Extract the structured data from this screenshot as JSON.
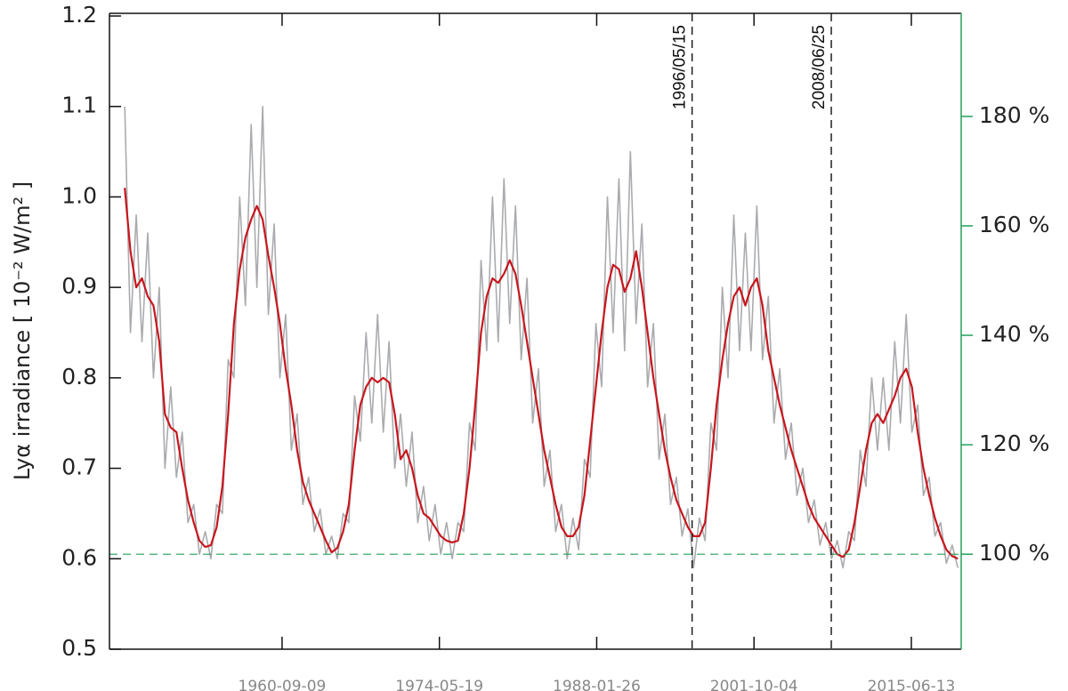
{
  "chart_data": {
    "type": "line",
    "y_label": "Lyα irradiance [ 10⁻² W/m² ]",
    "x": [
      "1947-01-01",
      "1947-07-01",
      "1948-01-01",
      "1948-07-01",
      "1949-01-01",
      "1949-07-01",
      "1950-01-01",
      "1950-07-01",
      "1951-01-01",
      "1951-07-01",
      "1952-01-01",
      "1952-07-01",
      "1953-01-01",
      "1953-07-01",
      "1954-01-01",
      "1954-07-01",
      "1955-01-01",
      "1955-07-01",
      "1956-01-01",
      "1956-07-01",
      "1957-01-01",
      "1957-07-01",
      "1958-01-01",
      "1958-07-01",
      "1959-01-01",
      "1959-07-01",
      "1960-01-01",
      "1960-07-01",
      "1961-01-01",
      "1961-07-01",
      "1962-01-01",
      "1962-07-01",
      "1963-01-01",
      "1963-07-01",
      "1964-01-01",
      "1964-07-01",
      "1965-01-01",
      "1965-07-01",
      "1966-01-01",
      "1966-07-01",
      "1967-01-01",
      "1967-07-01",
      "1968-01-01",
      "1968-07-01",
      "1969-01-01",
      "1969-07-01",
      "1970-01-01",
      "1970-07-01",
      "1971-01-01",
      "1971-07-01",
      "1972-01-01",
      "1972-07-01",
      "1973-01-01",
      "1973-07-01",
      "1974-01-01",
      "1974-07-01",
      "1975-01-01",
      "1975-07-01",
      "1976-01-01",
      "1976-07-01",
      "1977-01-01",
      "1977-07-01",
      "1978-01-01",
      "1978-07-01",
      "1979-01-01",
      "1979-07-01",
      "1980-01-01",
      "1980-07-01",
      "1981-01-01",
      "1981-07-01",
      "1982-01-01",
      "1982-07-01",
      "1983-01-01",
      "1983-07-01",
      "1984-01-01",
      "1984-07-01",
      "1985-01-01",
      "1985-07-01",
      "1986-01-01",
      "1986-07-01",
      "1987-01-01",
      "1987-07-01",
      "1988-01-01",
      "1988-07-01",
      "1989-01-01",
      "1989-07-01",
      "1990-01-01",
      "1990-07-01",
      "1991-01-01",
      "1991-07-01",
      "1992-01-01",
      "1992-07-01",
      "1993-01-01",
      "1993-07-01",
      "1994-01-01",
      "1994-07-01",
      "1995-01-01",
      "1995-07-01",
      "1996-01-01",
      "1996-07-01",
      "1997-01-01",
      "1997-07-01",
      "1998-01-01",
      "1998-07-01",
      "1999-01-01",
      "1999-07-01",
      "2000-01-01",
      "2000-07-01",
      "2001-01-01",
      "2001-07-01",
      "2002-01-01",
      "2002-07-01",
      "2003-01-01",
      "2003-07-01",
      "2004-01-01",
      "2004-07-01",
      "2005-01-01",
      "2005-07-01",
      "2006-01-01",
      "2006-07-01",
      "2007-01-01",
      "2007-07-01",
      "2008-01-01",
      "2008-07-01",
      "2009-01-01",
      "2009-07-01",
      "2010-01-01",
      "2010-07-01",
      "2011-01-01",
      "2011-07-01",
      "2012-01-01",
      "2012-07-01",
      "2013-01-01",
      "2013-07-01",
      "2014-01-01",
      "2014-07-01",
      "2015-01-01",
      "2015-07-01",
      "2016-01-01",
      "2016-07-01",
      "2017-01-01",
      "2017-07-01",
      "2018-01-01",
      "2018-07-01",
      "2019-01-01",
      "2019-07-01"
    ],
    "series": [
      {
        "color": "#a9abae",
        "values": [
          1.1,
          0.85,
          0.98,
          0.84,
          0.96,
          0.8,
          0.9,
          0.7,
          0.79,
          0.69,
          0.74,
          0.64,
          0.66,
          0.605,
          0.63,
          0.6,
          0.66,
          0.65,
          0.82,
          0.8,
          1.0,
          0.88,
          1.08,
          0.9,
          1.1,
          0.87,
          0.97,
          0.8,
          0.87,
          0.72,
          0.76,
          0.66,
          0.69,
          0.63,
          0.655,
          0.605,
          0.625,
          0.6,
          0.65,
          0.64,
          0.78,
          0.73,
          0.85,
          0.75,
          0.87,
          0.74,
          0.84,
          0.7,
          0.76,
          0.68,
          0.74,
          0.64,
          0.68,
          0.62,
          0.66,
          0.605,
          0.64,
          0.6,
          0.64,
          0.63,
          0.75,
          0.72,
          0.93,
          0.83,
          1.0,
          0.84,
          1.02,
          0.86,
          0.99,
          0.82,
          0.91,
          0.75,
          0.81,
          0.68,
          0.72,
          0.63,
          0.66,
          0.6,
          0.645,
          0.61,
          0.71,
          0.69,
          0.86,
          0.79,
          1.0,
          0.85,
          1.02,
          0.83,
          1.05,
          0.86,
          0.97,
          0.79,
          0.86,
          0.71,
          0.76,
          0.66,
          0.69,
          0.625,
          0.655,
          0.59,
          0.645,
          0.62,
          0.75,
          0.72,
          0.9,
          0.8,
          0.98,
          0.83,
          0.96,
          0.83,
          0.99,
          0.82,
          0.89,
          0.75,
          0.81,
          0.71,
          0.75,
          0.67,
          0.7,
          0.64,
          0.665,
          0.615,
          0.64,
          0.6,
          0.62,
          0.59,
          0.63,
          0.62,
          0.72,
          0.68,
          0.8,
          0.72,
          0.8,
          0.72,
          0.84,
          0.75,
          0.87,
          0.74,
          0.77,
          0.67,
          0.69,
          0.625,
          0.64,
          0.595,
          0.615,
          0.59
        ]
      },
      {
        "color": "#c8161d",
        "values": [
          1.01,
          0.94,
          0.9,
          0.91,
          0.89,
          0.88,
          0.84,
          0.76,
          0.745,
          0.74,
          0.7,
          0.665,
          0.64,
          0.62,
          0.613,
          0.615,
          0.635,
          0.68,
          0.76,
          0.86,
          0.92,
          0.955,
          0.975,
          0.99,
          0.975,
          0.935,
          0.9,
          0.86,
          0.81,
          0.77,
          0.72,
          0.685,
          0.665,
          0.65,
          0.635,
          0.62,
          0.607,
          0.612,
          0.63,
          0.66,
          0.72,
          0.77,
          0.79,
          0.8,
          0.795,
          0.8,
          0.795,
          0.76,
          0.71,
          0.72,
          0.7,
          0.67,
          0.65,
          0.645,
          0.635,
          0.625,
          0.62,
          0.618,
          0.62,
          0.65,
          0.7,
          0.77,
          0.85,
          0.89,
          0.91,
          0.905,
          0.915,
          0.93,
          0.915,
          0.88,
          0.84,
          0.8,
          0.76,
          0.72,
          0.69,
          0.66,
          0.635,
          0.625,
          0.625,
          0.635,
          0.67,
          0.73,
          0.79,
          0.85,
          0.9,
          0.925,
          0.92,
          0.895,
          0.91,
          0.94,
          0.9,
          0.85,
          0.8,
          0.76,
          0.72,
          0.69,
          0.665,
          0.65,
          0.635,
          0.625,
          0.625,
          0.64,
          0.7,
          0.77,
          0.82,
          0.86,
          0.89,
          0.9,
          0.88,
          0.9,
          0.91,
          0.88,
          0.83,
          0.8,
          0.77,
          0.745,
          0.72,
          0.7,
          0.68,
          0.66,
          0.645,
          0.635,
          0.625,
          0.615,
          0.605,
          0.602,
          0.61,
          0.64,
          0.68,
          0.72,
          0.75,
          0.76,
          0.75,
          0.765,
          0.78,
          0.8,
          0.81,
          0.79,
          0.74,
          0.7,
          0.67,
          0.645,
          0.625,
          0.61,
          0.603,
          0.6
        ]
      }
    ],
    "xlim": [
      "1945-09-02",
      "2019-10-15"
    ],
    "xticks": [
      "1960-09-09",
      "1974-05-19",
      "1988-01-26",
      "2001-10-04",
      "2015-06-13"
    ],
    "ylim": [
      0.5,
      1.2
    ],
    "yticks": [
      0.5,
      0.6,
      0.7,
      0.8,
      0.9,
      {
        "value": 1.0,
        "label": "1.0"
      },
      1.1,
      1.2
    ],
    "y2lim": [
      82.64,
      198.35
    ],
    "y2ticks": [
      {
        "value": 100,
        "label": "100 %"
      },
      {
        "value": 120,
        "label": "120 %"
      },
      {
        "value": 140,
        "label": "140 %"
      },
      {
        "value": 160,
        "label": "160 %"
      },
      {
        "value": 180,
        "label": "180 %"
      }
    ],
    "y2_color": "#22a05a",
    "hline": {
      "value": 0.605,
      "color": "#22a05a"
    },
    "vlines": [
      {
        "x": "1996-05-15",
        "label": "1996/05/15"
      },
      {
        "x": "2008-06-25",
        "label": "2008/06/25"
      }
    ]
  }
}
